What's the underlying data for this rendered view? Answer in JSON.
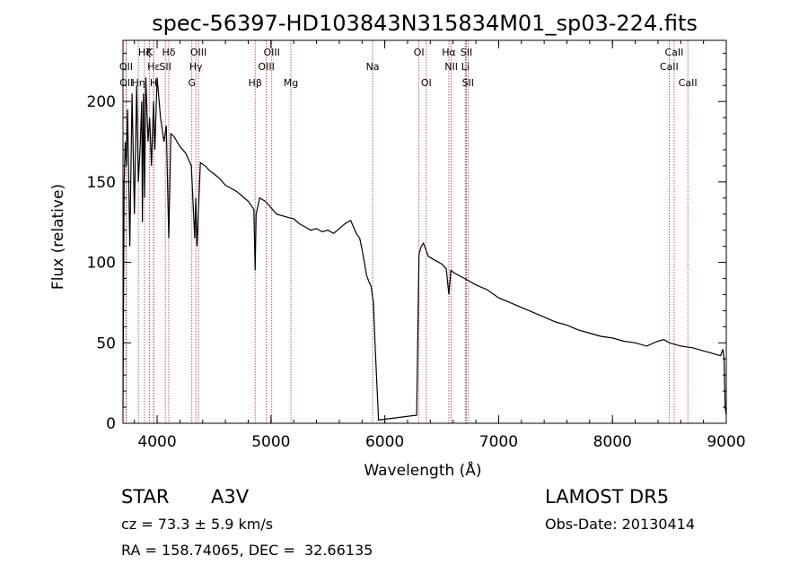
{
  "chart_data": {
    "type": "line",
    "title": "spec-56397-HD103843N315834M01_sp03-224.fits",
    "xlabel": "Wavelength (Å)",
    "ylabel": "Flux (relative)",
    "xlim": [
      3700,
      9000
    ],
    "ylim": [
      0,
      238
    ],
    "x_ticks": [
      4000,
      5000,
      6000,
      7000,
      8000,
      9000
    ],
    "y_ticks": [
      0,
      50,
      100,
      150,
      200
    ],
    "grid": false,
    "series": [
      {
        "x": [
          3700,
          3710,
          3720,
          3730,
          3740,
          3760,
          3780,
          3800,
          3820,
          3835,
          3850,
          3865,
          3870,
          3880,
          3889,
          3900,
          3920,
          3934,
          3950,
          3968,
          3980,
          4000,
          4030,
          4060,
          4080,
          4102,
          4120,
          4150,
          4200,
          4250,
          4300,
          4330,
          4340,
          4350,
          4380,
          4420,
          4460,
          4500,
          4550,
          4600,
          4650,
          4700,
          4750,
          4800,
          4850,
          4861,
          4870,
          4900,
          4950,
          5000,
          5050,
          5100,
          5150,
          5200,
          5250,
          5300,
          5350,
          5400,
          5450,
          5500,
          5550,
          5600,
          5650,
          5700,
          5750,
          5780,
          5800,
          5820,
          5840,
          5860,
          5880,
          5900,
          5920,
          5940,
          5945,
          6280,
          6300,
          6320,
          6340,
          6360,
          6380,
          6400,
          6450,
          6500,
          6540,
          6563,
          6580,
          6620,
          6700,
          6800,
          6900,
          7000,
          7100,
          7200,
          7300,
          7400,
          7500,
          7600,
          7700,
          7800,
          7900,
          8000,
          8100,
          8200,
          8300,
          8400,
          8450,
          8500,
          8550,
          8600,
          8700,
          8800,
          8850,
          8900,
          8950,
          8960,
          8970,
          8980,
          8990,
          9000
        ],
        "y": [
          10,
          150,
          175,
          160,
          195,
          110,
          205,
          130,
          210,
          150,
          170,
          200,
          125,
          205,
          140,
          215,
          175,
          190,
          160,
          200,
          170,
          215,
          190,
          175,
          185,
          115,
          180,
          178,
          172,
          168,
          160,
          115,
          140,
          110,
          162,
          160,
          157,
          155,
          152,
          148,
          146,
          144,
          141,
          138,
          133,
          95,
          130,
          140,
          138,
          134,
          130,
          129,
          128,
          127,
          124,
          122,
          120,
          121,
          119,
          120,
          118,
          121,
          124,
          126,
          118,
          115,
          108,
          100,
          92,
          88,
          85,
          75,
          40,
          10,
          2,
          5,
          105,
          110,
          112,
          108,
          104,
          103,
          101,
          99,
          96,
          80,
          95,
          93,
          90,
          86,
          83,
          78,
          75,
          72,
          69,
          66,
          63,
          61,
          58,
          56,
          54,
          53,
          51,
          50,
          48,
          51,
          52,
          50,
          49,
          48,
          47,
          45,
          44,
          43,
          42,
          44,
          46,
          40,
          10,
          5
        ]
      }
    ],
    "line_markers": [
      {
        "label": "Hα",
        "x": 6563,
        "row": 1
      },
      {
        "label": "NII",
        "x": 6584,
        "row": 2
      },
      {
        "label": "SII",
        "x": 6717,
        "row": 1
      },
      {
        "label": "Li",
        "x": 6708,
        "row": 2
      },
      {
        "label": "SII",
        "x": 6731,
        "row": 3
      },
      {
        "label": "OI",
        "x": 6300,
        "row": 1
      },
      {
        "label": "OI",
        "x": 6364,
        "row": 3
      },
      {
        "label": "Na",
        "x": 5893,
        "row": 2
      },
      {
        "label": "Mg",
        "x": 5175,
        "row": 3
      },
      {
        "label": "OIII",
        "x": 5007,
        "row": 1
      },
      {
        "label": "OIII",
        "x": 4959,
        "row": 2
      },
      {
        "label": "Hβ",
        "x": 4861,
        "row": 3
      },
      {
        "label": "OIII",
        "x": 4363,
        "row": 1
      },
      {
        "label": "Hγ",
        "x": 4340,
        "row": 2
      },
      {
        "label": "G",
        "x": 4305,
        "row": 3
      },
      {
        "label": "Hδ",
        "x": 4102,
        "row": 1
      },
      {
        "label": "SII",
        "x": 4072,
        "row": 2
      },
      {
        "label": "K",
        "x": 3934,
        "row": 1
      },
      {
        "label": "Hε",
        "x": 3970,
        "row": 2
      },
      {
        "label": "Hζ",
        "x": 3889,
        "row": 1
      },
      {
        "label": "Hη",
        "x": 3835,
        "row": 3
      },
      {
        "label": "OII",
        "x": 3727,
        "row": 2
      },
      {
        "label": "OII",
        "x": 3729,
        "row": 3
      },
      {
        "label": "H",
        "x": 3968,
        "row": 3
      },
      {
        "label": "CaII",
        "x": 8542,
        "row": 1
      },
      {
        "label": "CaII",
        "x": 8498,
        "row": 2
      },
      {
        "label": "CaII",
        "x": 8662,
        "row": 3
      }
    ]
  },
  "info": {
    "object_class": "STAR",
    "subclass": "A3V",
    "survey": "LAMOST DR5",
    "velocity": "cz = 73.3 ± 5.9 km/s",
    "obs_date": "Obs-Date: 20130414",
    "coords": "RA = 158.74065, DEC =  32.66135"
  },
  "colors": {
    "spectrum": "#000000",
    "marker": "#a03030",
    "axes": "#000000"
  }
}
